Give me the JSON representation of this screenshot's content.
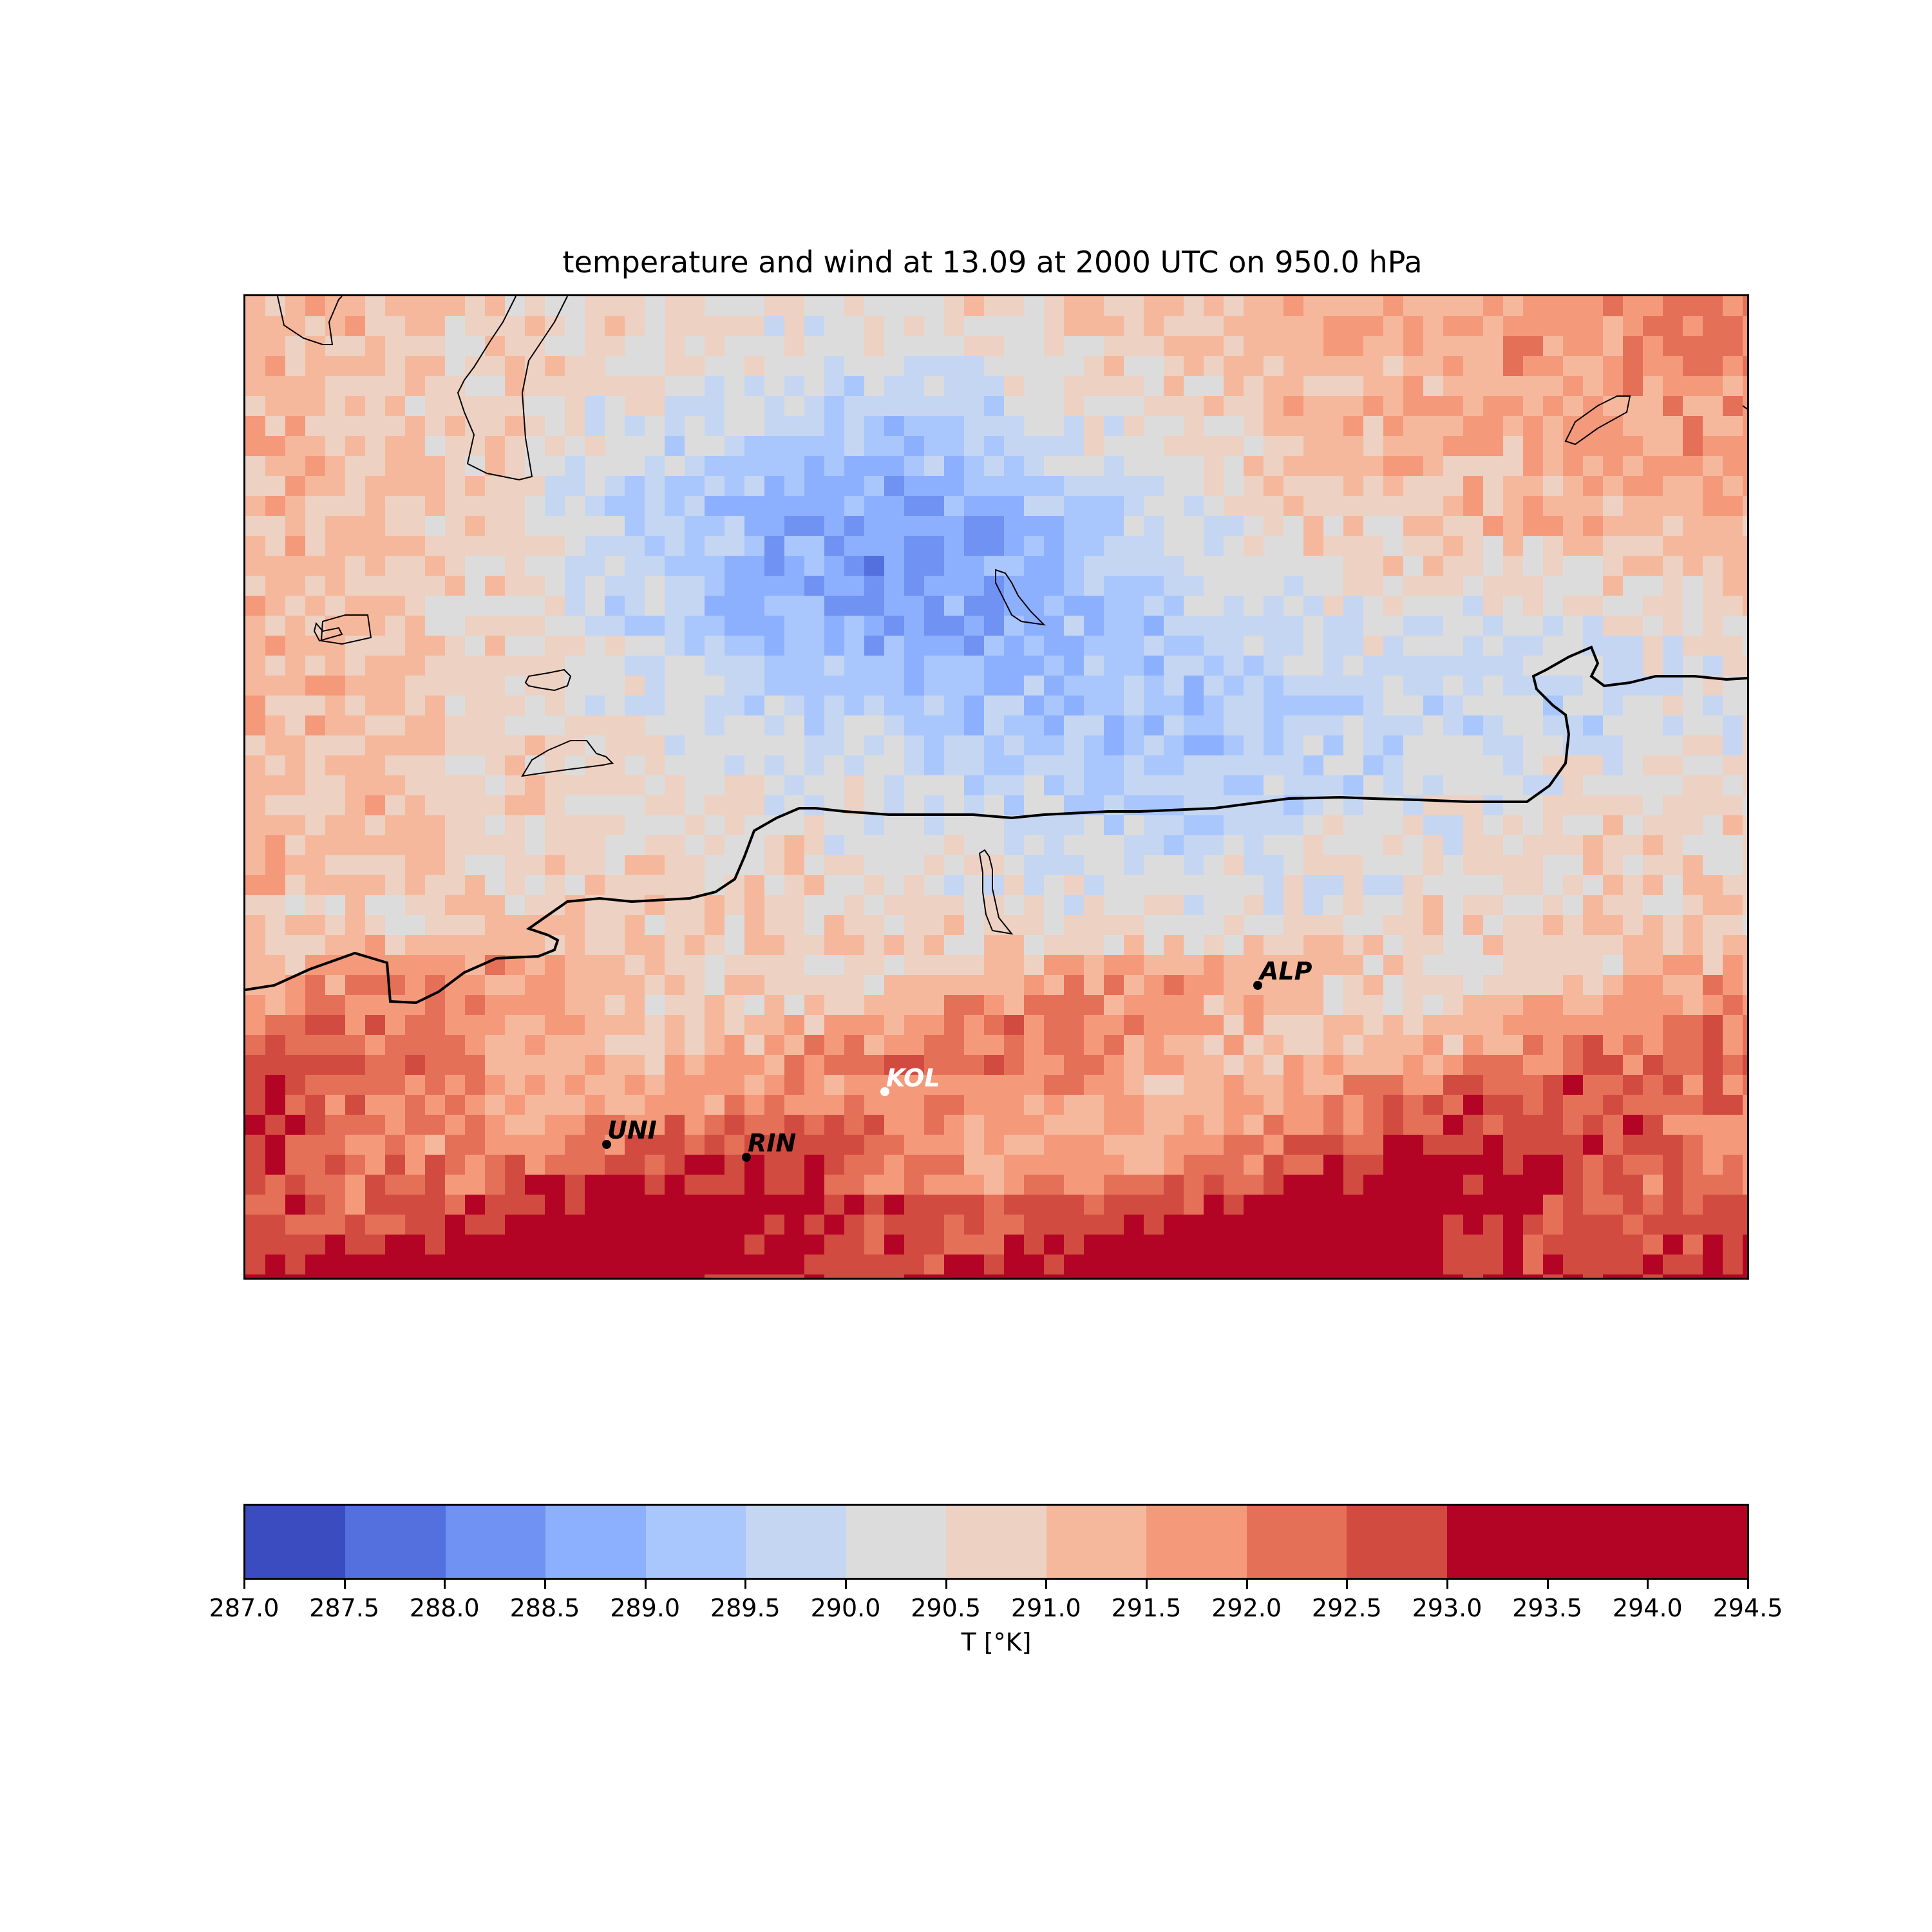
{
  "title": "temperature and wind at 13.09 at 2000 UTC on 950.0 hPa",
  "colorbar": {
    "label": "T [°K]",
    "ticks": [
      "287.0",
      "287.5",
      "288.0",
      "288.5",
      "289.0",
      "289.5",
      "290.0",
      "290.5",
      "291.0",
      "291.5",
      "292.0",
      "292.5",
      "293.0",
      "293.5",
      "294.0",
      "294.5"
    ],
    "colors": [
      "#3b4cc0",
      "#5470de",
      "#6f92f3",
      "#8db0fe",
      "#a9c6fd",
      "#c5d6f2",
      "#dddcdc",
      "#edd1c2",
      "#f6b89c",
      "#f49a7b",
      "#e57058",
      "#d24b40",
      "#b40426",
      "#b40426",
      "#b40426"
    ]
  },
  "stations": [
    {
      "name": "ALP",
      "color": "#000000"
    },
    {
      "name": "KOL",
      "color": "#ffffff"
    },
    {
      "name": "UNI",
      "color": "#000000"
    },
    {
      "name": "RIN",
      "color": "#000000"
    }
  ],
  "chart_data": {
    "type": "heatmap",
    "title": "temperature and wind at 13.09 at 2000 UTC on 950.0 hPa",
    "colorbar_label": "T [°K]",
    "value_range": [
      287.0,
      294.5
    ],
    "levels": [
      287.0,
      287.5,
      288.0,
      288.5,
      289.0,
      289.5,
      290.0,
      290.5,
      291.0,
      291.5,
      292.0,
      292.5,
      293.0,
      293.5,
      294.0,
      294.5
    ],
    "colormap": "coolwarm",
    "description_fields": {
      "cold_region": "north-central, minimum about 287.5-288.0",
      "warm_region": "south, maximum about 294.0-294.5"
    },
    "stations": [
      "ALP",
      "KOL",
      "UNI",
      "RIN"
    ]
  }
}
